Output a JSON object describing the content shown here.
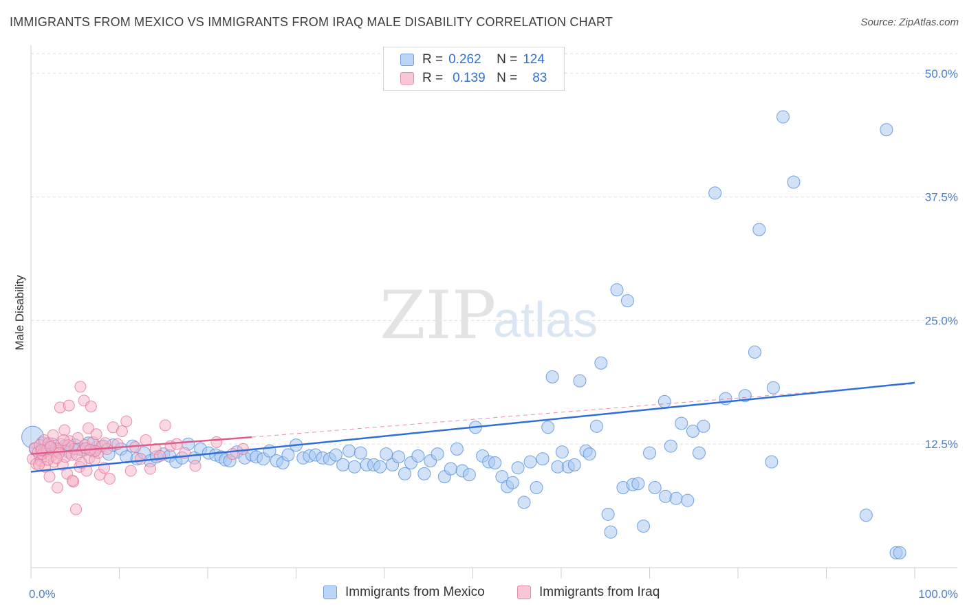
{
  "header": {
    "title": "IMMIGRANTS FROM MEXICO VS IMMIGRANTS FROM IRAQ MALE DISABILITY CORRELATION CHART",
    "source": "Source: ZipAtlas.com"
  },
  "legend": {
    "rows": [
      {
        "r_label": "R =",
        "r_value": "0.262",
        "n_label": "N =",
        "n_value": "124"
      },
      {
        "r_label": "R =",
        "r_value": "0.139",
        "n_label": "N =",
        "n_value": "83"
      }
    ]
  },
  "watermark": {
    "zip": "ZIP",
    "atlas": "atlas"
  },
  "colors": {
    "mexico_fill": "#a9c8f2",
    "mexico_stroke": "#5b93dd",
    "mexico_line": "#2f6fd6",
    "iraq_fill": "#f7b3c8",
    "iraq_stroke": "#e3769b",
    "iraq_line": "#e05a8a",
    "grid": "#dcdcdc",
    "tick_text": "#4a7fd0"
  },
  "chart_data": {
    "type": "scatter",
    "title": "IMMIGRANTS FROM MEXICO VS IMMIGRANTS FROM IRAQ MALE DISABILITY CORRELATION CHART",
    "xlabel": "",
    "ylabel": "Male Disability",
    "xlim": [
      0,
      100
    ],
    "ylim": [
      0,
      52
    ],
    "x_tick_labels": [
      "0.0%",
      "100.0%"
    ],
    "y_ticks": [
      12.5,
      25.0,
      37.5,
      50.0
    ],
    "y_tick_labels": [
      "12.5%",
      "25.0%",
      "37.5%",
      "50.0%"
    ],
    "legend_position": "top-center",
    "series": [
      {
        "name": "Immigrants from Mexico",
        "color": "#a9c8f2",
        "trend": {
          "x": [
            0,
            100
          ],
          "y": [
            9.7,
            18.7
          ]
        },
        "points": [
          {
            "x": 0.2,
            "y": 13.2
          },
          {
            "x": 0.5,
            "y": 12.0
          },
          {
            "x": 1.0,
            "y": 11.4
          },
          {
            "x": 1.3,
            "y": 12.6
          },
          {
            "x": 1.6,
            "y": 11.8
          },
          {
            "x": 2.0,
            "y": 12.2
          },
          {
            "x": 2.4,
            "y": 12.5
          },
          {
            "x": 2.8,
            "y": 11.9
          },
          {
            "x": 3.3,
            "y": 12.0
          },
          {
            "x": 3.8,
            "y": 12.3
          },
          {
            "x": 4.3,
            "y": 11.7
          },
          {
            "x": 5.0,
            "y": 12.4
          },
          {
            "x": 5.5,
            "y": 12.0
          },
          {
            "x": 6.0,
            "y": 11.9
          },
          {
            "x": 6.5,
            "y": 12.6
          },
          {
            "x": 7.1,
            "y": 11.8
          },
          {
            "x": 7.5,
            "y": 12.2
          },
          {
            "x": 8.2,
            "y": 12.3
          },
          {
            "x": 8.8,
            "y": 11.5
          },
          {
            "x": 9.3,
            "y": 12.4
          },
          {
            "x": 10.2,
            "y": 12.0
          },
          {
            "x": 10.8,
            "y": 11.2
          },
          {
            "x": 11.5,
            "y": 12.3
          },
          {
            "x": 12.0,
            "y": 11.0
          },
          {
            "x": 12.8,
            "y": 11.6
          },
          {
            "x": 13.5,
            "y": 10.8
          },
          {
            "x": 14.2,
            "y": 11.2
          },
          {
            "x": 15.0,
            "y": 11.5
          },
          {
            "x": 15.7,
            "y": 11.3
          },
          {
            "x": 16.4,
            "y": 10.7
          },
          {
            "x": 17.1,
            "y": 11.1
          },
          {
            "x": 17.8,
            "y": 12.5
          },
          {
            "x": 18.5,
            "y": 11.1
          },
          {
            "x": 19.2,
            "y": 12.0
          },
          {
            "x": 20.1,
            "y": 11.6
          },
          {
            "x": 20.9,
            "y": 11.4
          },
          {
            "x": 21.5,
            "y": 11.2
          },
          {
            "x": 22.0,
            "y": 10.9
          },
          {
            "x": 22.5,
            "y": 10.8
          },
          {
            "x": 23.3,
            "y": 11.7
          },
          {
            "x": 24.2,
            "y": 11.1
          },
          {
            "x": 25.0,
            "y": 11.4
          },
          {
            "x": 25.5,
            "y": 11.2
          },
          {
            "x": 26.3,
            "y": 11.0
          },
          {
            "x": 27.0,
            "y": 11.8
          },
          {
            "x": 27.8,
            "y": 10.8
          },
          {
            "x": 28.5,
            "y": 10.6
          },
          {
            "x": 29.1,
            "y": 11.4
          },
          {
            "x": 30.0,
            "y": 12.4
          },
          {
            "x": 30.8,
            "y": 11.1
          },
          {
            "x": 31.5,
            "y": 11.3
          },
          {
            "x": 32.2,
            "y": 11.4
          },
          {
            "x": 33.0,
            "y": 11.1
          },
          {
            "x": 33.8,
            "y": 11.0
          },
          {
            "x": 34.5,
            "y": 11.4
          },
          {
            "x": 35.3,
            "y": 10.4
          },
          {
            "x": 36.0,
            "y": 11.8
          },
          {
            "x": 36.6,
            "y": 10.2
          },
          {
            "x": 37.3,
            "y": 11.6
          },
          {
            "x": 38.0,
            "y": 10.4
          },
          {
            "x": 38.8,
            "y": 10.4
          },
          {
            "x": 39.5,
            "y": 10.2
          },
          {
            "x": 40.2,
            "y": 11.5
          },
          {
            "x": 40.9,
            "y": 10.4
          },
          {
            "x": 41.6,
            "y": 11.2
          },
          {
            "x": 42.3,
            "y": 9.5
          },
          {
            "x": 43.0,
            "y": 10.6
          },
          {
            "x": 43.8,
            "y": 11.3
          },
          {
            "x": 44.5,
            "y": 9.5
          },
          {
            "x": 45.2,
            "y": 10.8
          },
          {
            "x": 46.0,
            "y": 11.5
          },
          {
            "x": 46.8,
            "y": 9.2
          },
          {
            "x": 47.5,
            "y": 10.0
          },
          {
            "x": 48.2,
            "y": 12.0
          },
          {
            "x": 48.8,
            "y": 9.8
          },
          {
            "x": 49.6,
            "y": 9.4
          },
          {
            "x": 50.3,
            "y": 14.2
          },
          {
            "x": 51.1,
            "y": 11.3
          },
          {
            "x": 51.8,
            "y": 10.7
          },
          {
            "x": 52.5,
            "y": 10.6
          },
          {
            "x": 53.3,
            "y": 9.2
          },
          {
            "x": 53.9,
            "y": 8.2
          },
          {
            "x": 54.5,
            "y": 8.6
          },
          {
            "x": 55.1,
            "y": 10.1
          },
          {
            "x": 55.8,
            "y": 6.6
          },
          {
            "x": 56.5,
            "y": 10.7
          },
          {
            "x": 57.2,
            "y": 8.1
          },
          {
            "x": 57.9,
            "y": 11.0
          },
          {
            "x": 58.5,
            "y": 14.2
          },
          {
            "x": 59.0,
            "y": 19.3
          },
          {
            "x": 59.6,
            "y": 10.2
          },
          {
            "x": 60.1,
            "y": 11.7
          },
          {
            "x": 60.8,
            "y": 10.2
          },
          {
            "x": 61.5,
            "y": 10.4
          },
          {
            "x": 62.1,
            "y": 18.9
          },
          {
            "x": 62.8,
            "y": 11.8
          },
          {
            "x": 63.2,
            "y": 11.5
          },
          {
            "x": 64.0,
            "y": 14.3
          },
          {
            "x": 64.5,
            "y": 20.7
          },
          {
            "x": 65.3,
            "y": 5.4
          },
          {
            "x": 65.6,
            "y": 3.6
          },
          {
            "x": 66.3,
            "y": 28.1
          },
          {
            "x": 67.0,
            "y": 8.1
          },
          {
            "x": 67.5,
            "y": 27.0
          },
          {
            "x": 68.1,
            "y": 8.4
          },
          {
            "x": 68.7,
            "y": 8.5
          },
          {
            "x": 69.3,
            "y": 4.2
          },
          {
            "x": 70.0,
            "y": 11.6
          },
          {
            "x": 70.6,
            "y": 8.1
          },
          {
            "x": 71.7,
            "y": 16.8
          },
          {
            "x": 71.8,
            "y": 7.2
          },
          {
            "x": 72.4,
            "y": 12.3
          },
          {
            "x": 73.0,
            "y": 7.0
          },
          {
            "x": 73.6,
            "y": 14.6
          },
          {
            "x": 74.3,
            "y": 6.8
          },
          {
            "x": 74.9,
            "y": 13.8
          },
          {
            "x": 75.6,
            "y": 11.6
          },
          {
            "x": 76.1,
            "y": 14.3
          },
          {
            "x": 77.4,
            "y": 37.9
          },
          {
            "x": 78.6,
            "y": 17.1
          },
          {
            "x": 80.8,
            "y": 17.4
          },
          {
            "x": 81.9,
            "y": 21.8
          },
          {
            "x": 82.4,
            "y": 34.2
          },
          {
            "x": 84.0,
            "y": 18.2
          },
          {
            "x": 83.8,
            "y": 10.7
          },
          {
            "x": 85.1,
            "y": 45.6
          },
          {
            "x": 86.3,
            "y": 39.0
          },
          {
            "x": 94.5,
            "y": 5.3
          },
          {
            "x": 96.8,
            "y": 44.3
          },
          {
            "x": 97.9,
            "y": 1.5
          },
          {
            "x": 98.3,
            "y": 1.5
          }
        ]
      },
      {
        "name": "Immigrants from Iraq",
        "color": "#f7b3c8",
        "trend": {
          "x": [
            0,
            25
          ],
          "y": [
            11.5,
            13.2
          ]
        },
        "trend_extension": {
          "x": [
            25,
            100
          ],
          "y": [
            13.2,
            18.6
          ]
        },
        "points": [
          {
            "x": 0.2,
            "y": 11.0
          },
          {
            "x": 0.4,
            "y": 12.1
          },
          {
            "x": 0.6,
            "y": 10.5
          },
          {
            "x": 0.8,
            "y": 11.7
          },
          {
            "x": 1.0,
            "y": 12.4
          },
          {
            "x": 1.1,
            "y": 10.8
          },
          {
            "x": 1.3,
            "y": 11.5
          },
          {
            "x": 1.5,
            "y": 12.9
          },
          {
            "x": 1.6,
            "y": 10.2
          },
          {
            "x": 1.8,
            "y": 11.9
          },
          {
            "x": 2.0,
            "y": 12.6
          },
          {
            "x": 2.1,
            "y": 9.2
          },
          {
            "x": 2.3,
            "y": 11.3
          },
          {
            "x": 2.5,
            "y": 13.4
          },
          {
            "x": 2.6,
            "y": 10.7
          },
          {
            "x": 2.8,
            "y": 12.1
          },
          {
            "x": 3.0,
            "y": 8.1
          },
          {
            "x": 3.1,
            "y": 11.8
          },
          {
            "x": 3.3,
            "y": 16.2
          },
          {
            "x": 3.4,
            "y": 12.5
          },
          {
            "x": 3.6,
            "y": 10.4
          },
          {
            "x": 3.8,
            "y": 13.9
          },
          {
            "x": 3.9,
            "y": 11.2
          },
          {
            "x": 4.1,
            "y": 9.5
          },
          {
            "x": 4.3,
            "y": 16.4
          },
          {
            "x": 4.4,
            "y": 12.8
          },
          {
            "x": 4.6,
            "y": 11.4
          },
          {
            "x": 4.8,
            "y": 8.7
          },
          {
            "x": 4.9,
            "y": 12.0
          },
          {
            "x": 5.1,
            "y": 5.9
          },
          {
            "x": 5.3,
            "y": 13.1
          },
          {
            "x": 5.5,
            "y": 10.2
          },
          {
            "x": 5.6,
            "y": 18.3
          },
          {
            "x": 5.8,
            "y": 11.8
          },
          {
            "x": 6.0,
            "y": 16.9
          },
          {
            "x": 6.1,
            "y": 12.4
          },
          {
            "x": 6.3,
            "y": 9.8
          },
          {
            "x": 6.5,
            "y": 14.1
          },
          {
            "x": 6.6,
            "y": 11.1
          },
          {
            "x": 6.8,
            "y": 16.3
          },
          {
            "x": 7.0,
            "y": 12.7
          },
          {
            "x": 7.2,
            "y": 10.9
          },
          {
            "x": 7.4,
            "y": 13.5
          },
          {
            "x": 7.6,
            "y": 11.6
          },
          {
            "x": 7.8,
            "y": 9.4
          },
          {
            "x": 8.0,
            "y": 12.3
          },
          {
            "x": 8.3,
            "y": 10.1
          },
          {
            "x": 8.6,
            "y": 12.0
          },
          {
            "x": 8.9,
            "y": 9.0
          },
          {
            "x": 9.3,
            "y": 14.2
          },
          {
            "x": 9.8,
            "y": 12.5
          },
          {
            "x": 10.3,
            "y": 13.8
          },
          {
            "x": 10.8,
            "y": 14.8
          },
          {
            "x": 11.3,
            "y": 9.8
          },
          {
            "x": 11.8,
            "y": 12.2
          },
          {
            "x": 12.4,
            "y": 11.0
          },
          {
            "x": 13.0,
            "y": 12.9
          },
          {
            "x": 13.5,
            "y": 10.0
          },
          {
            "x": 14.1,
            "y": 12.0
          },
          {
            "x": 14.6,
            "y": 11.3
          },
          {
            "x": 15.2,
            "y": 14.4
          },
          {
            "x": 15.8,
            "y": 12.3
          },
          {
            "x": 16.5,
            "y": 12.5
          },
          {
            "x": 17.4,
            "y": 11.6
          },
          {
            "x": 18.6,
            "y": 10.3
          },
          {
            "x": 21.0,
            "y": 12.7
          },
          {
            "x": 22.8,
            "y": 11.5
          },
          {
            "x": 24.0,
            "y": 12.0
          },
          {
            "x": 1.2,
            "y": 11.9
          },
          {
            "x": 2.2,
            "y": 12.2
          },
          {
            "x": 3.2,
            "y": 11.6
          },
          {
            "x": 4.2,
            "y": 12.4
          },
          {
            "x": 5.2,
            "y": 11.4
          },
          {
            "x": 6.2,
            "y": 12.1
          },
          {
            "x": 7.3,
            "y": 11.8
          },
          {
            "x": 8.4,
            "y": 12.6
          },
          {
            "x": 0.9,
            "y": 10.4
          },
          {
            "x": 1.9,
            "y": 10.9
          },
          {
            "x": 2.9,
            "y": 11.1
          },
          {
            "x": 3.7,
            "y": 12.9
          },
          {
            "x": 4.7,
            "y": 8.8
          },
          {
            "x": 5.7,
            "y": 10.6
          },
          {
            "x": 6.7,
            "y": 11.9
          }
        ]
      }
    ]
  },
  "bottom_legend": {
    "items": [
      "Immigrants from Mexico",
      "Immigrants from Iraq"
    ]
  }
}
